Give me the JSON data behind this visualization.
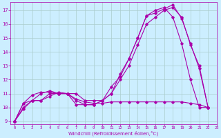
{
  "background_color": "#cceeff",
  "line_color": "#aa00aa",
  "grid_color": "#aacccc",
  "xlim": [
    -0.5,
    23
  ],
  "ylim": [
    8.8,
    17.6
  ],
  "xlabel": "Windchill (Refroidissement éolien,°C)",
  "xticks": [
    0,
    1,
    2,
    3,
    4,
    5,
    6,
    7,
    8,
    9,
    10,
    11,
    12,
    13,
    14,
    15,
    16,
    17,
    18,
    19,
    20,
    21,
    22,
    23
  ],
  "yticks": [
    9,
    10,
    11,
    12,
    13,
    14,
    15,
    16,
    17
  ],
  "series": [
    {
      "x": [
        0,
        1,
        2,
        3,
        4,
        5,
        6,
        7,
        8,
        9,
        10,
        11,
        12,
        13,
        14,
        15,
        16,
        17,
        18,
        19,
        20,
        21,
        22
      ],
      "y": [
        9.0,
        10.3,
        10.9,
        11.1,
        11.1,
        11.0,
        11.0,
        10.5,
        10.2,
        10.2,
        10.5,
        11.0,
        12.4,
        13.5,
        15.0,
        16.6,
        16.8,
        17.1,
        17.4,
        16.4,
        14.6,
        12.8,
        10.0
      ]
    },
    {
      "x": [
        0,
        1,
        2,
        3,
        4,
        5,
        6,
        7,
        8,
        9,
        10,
        11,
        12,
        13,
        14,
        15,
        16,
        17,
        18,
        19,
        20,
        21,
        22
      ],
      "y": [
        9.0,
        10.0,
        10.5,
        10.5,
        10.8,
        11.1,
        11.0,
        10.6,
        10.4,
        10.3,
        10.3,
        10.4,
        10.4,
        10.4,
        10.4,
        10.4,
        10.4,
        10.4,
        10.4,
        10.4,
        10.3,
        10.2,
        10.0
      ]
    },
    {
      "x": [
        0,
        1,
        2,
        3,
        4,
        5,
        6,
        7,
        8,
        9,
        10,
        11,
        12,
        13,
        14,
        15,
        16,
        17,
        18,
        19,
        20,
        21,
        22
      ],
      "y": [
        9.0,
        9.9,
        10.5,
        10.5,
        11.0,
        11.0,
        11.0,
        10.2,
        10.2,
        10.2,
        10.5,
        11.5,
        12.2,
        13.5,
        15.0,
        16.6,
        17.0,
        17.2,
        16.5,
        14.6,
        12.0,
        10.0,
        10.0
      ]
    },
    {
      "x": [
        0,
        1,
        2,
        3,
        4,
        5,
        6,
        7,
        8,
        9,
        10,
        11,
        12,
        13,
        14,
        15,
        16,
        17,
        18,
        19,
        20,
        21,
        22
      ],
      "y": [
        9.0,
        10.3,
        10.5,
        11.0,
        11.2,
        11.0,
        11.0,
        11.0,
        10.5,
        10.5,
        10.5,
        11.0,
        12.0,
        13.0,
        14.5,
        16.0,
        16.5,
        17.0,
        17.2,
        16.5,
        14.5,
        13.0,
        10.0
      ]
    }
  ],
  "marker": "D",
  "markersize": 1.8,
  "linewidth": 0.8
}
